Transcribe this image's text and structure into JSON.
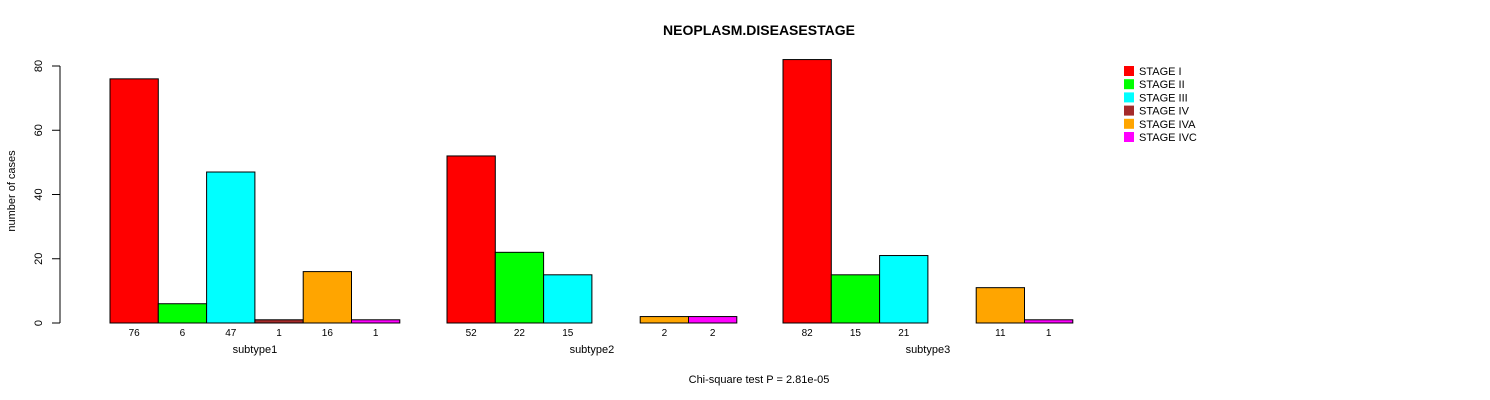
{
  "chart_data": {
    "type": "bar",
    "title": "NEOPLASM.DISEASESTAGE",
    "ylabel": "number of cases",
    "footnote": "Chi-square test P = 2.81e-05",
    "ylim": [
      0,
      84
    ],
    "yticks": [
      0,
      20,
      40,
      60,
      80
    ],
    "grid": false,
    "legend_position": "top-right",
    "categories": [
      "subtype1",
      "subtype2",
      "subtype3"
    ],
    "series": [
      {
        "name": "STAGE I",
        "color": "#ff0000",
        "values": [
          76,
          52,
          82
        ]
      },
      {
        "name": "STAGE II",
        "color": "#00ff00",
        "values": [
          6,
          22,
          15
        ]
      },
      {
        "name": "STAGE III",
        "color": "#00ffff",
        "values": [
          47,
          15,
          21
        ]
      },
      {
        "name": "STAGE IV",
        "color": "#a52a2a",
        "values": [
          1,
          0,
          0
        ]
      },
      {
        "name": "STAGE IVA",
        "color": "#ffa500",
        "values": [
          16,
          2,
          11
        ]
      },
      {
        "name": "STAGE IVC",
        "color": "#ff00ff",
        "values": [
          1,
          2,
          1
        ]
      }
    ]
  }
}
